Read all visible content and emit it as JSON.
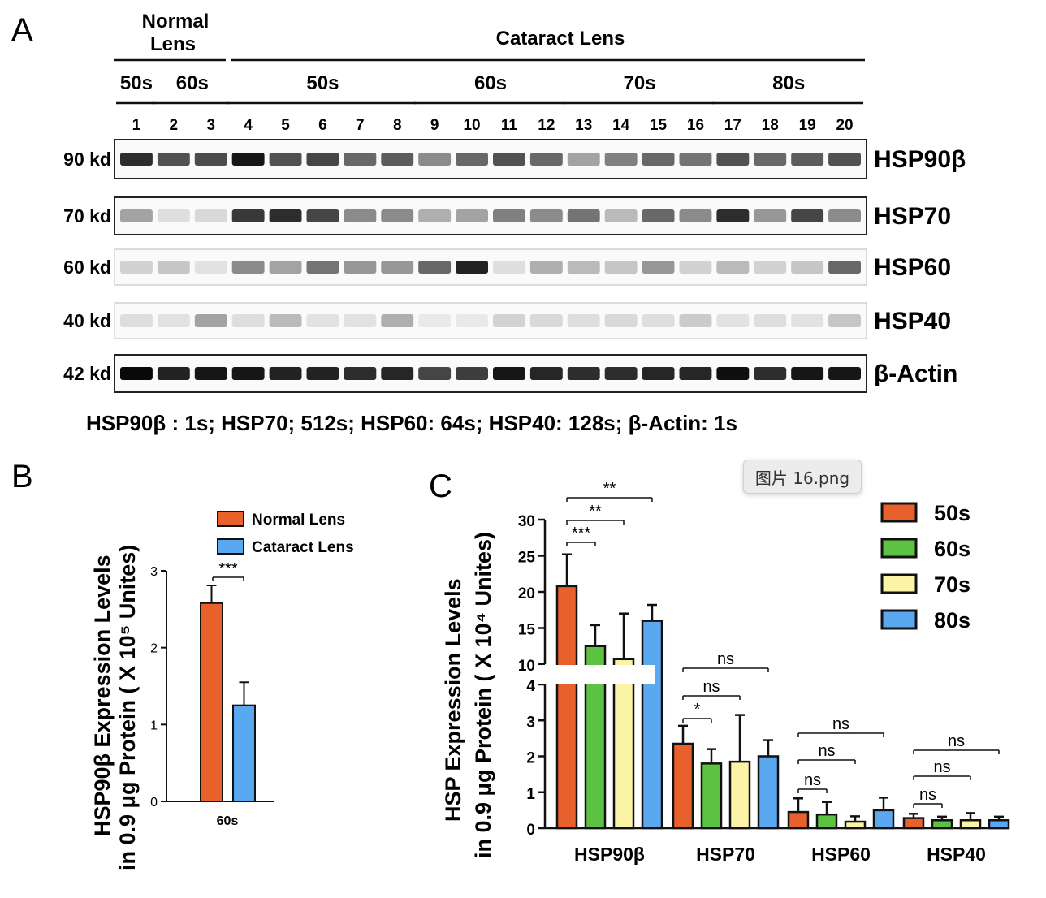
{
  "panels": {
    "a": "A",
    "b": "B",
    "c": "C"
  },
  "blot": {
    "group_normal": "Normal\nLens",
    "group_cataract": "Cataract Lens",
    "age_headers": [
      {
        "label": "50s",
        "lanes": [
          1
        ]
      },
      {
        "label": "60s",
        "lanes": [
          2,
          3
        ]
      },
      {
        "label": "50s",
        "lanes": [
          4,
          5,
          6,
          7,
          8
        ]
      },
      {
        "label": "60s",
        "lanes": [
          9,
          10,
          11,
          12
        ]
      },
      {
        "label": "70s",
        "lanes": [
          13,
          14,
          15,
          16
        ]
      },
      {
        "label": "80s",
        "lanes": [
          17,
          18,
          19,
          20
        ]
      }
    ],
    "lanes": [
      "1",
      "2",
      "3",
      "4",
      "5",
      "6",
      "7",
      "8",
      "9",
      "10",
      "11",
      "12",
      "13",
      "14",
      "15",
      "16",
      "17",
      "18",
      "19",
      "20"
    ],
    "rows": [
      {
        "kd": "90 kd",
        "protein": "HSP90β",
        "intensity": [
          0.85,
          0.7,
          0.72,
          0.95,
          0.7,
          0.75,
          0.6,
          0.65,
          0.45,
          0.6,
          0.7,
          0.6,
          0.35,
          0.5,
          0.6,
          0.55,
          0.7,
          0.6,
          0.65,
          0.7
        ]
      },
      {
        "kd": "70 kd",
        "protein": "HSP70",
        "intensity": [
          0.35,
          0.1,
          0.12,
          0.8,
          0.85,
          0.75,
          0.45,
          0.45,
          0.3,
          0.35,
          0.5,
          0.45,
          0.55,
          0.25,
          0.6,
          0.45,
          0.85,
          0.4,
          0.75,
          0.45
        ]
      },
      {
        "kd": "60 kd",
        "protein": "HSP60",
        "intensity": [
          0.15,
          0.2,
          0.08,
          0.45,
          0.35,
          0.55,
          0.4,
          0.4,
          0.6,
          0.9,
          0.1,
          0.3,
          0.25,
          0.2,
          0.4,
          0.15,
          0.25,
          0.15,
          0.2,
          0.6
        ]
      },
      {
        "kd": "40 kd",
        "protein": "HSP40",
        "intensity": [
          0.1,
          0.08,
          0.35,
          0.1,
          0.25,
          0.08,
          0.08,
          0.3,
          0.05,
          0.05,
          0.15,
          0.12,
          0.1,
          0.12,
          0.1,
          0.18,
          0.08,
          0.1,
          0.08,
          0.2
        ]
      },
      {
        "kd": "42 kd",
        "protein": "β-Actin",
        "intensity": [
          1.0,
          0.9,
          0.95,
          0.95,
          0.9,
          0.9,
          0.85,
          0.88,
          0.75,
          0.78,
          0.95,
          0.88,
          0.85,
          0.85,
          0.88,
          0.88,
          0.98,
          0.85,
          0.95,
          0.95
        ]
      }
    ],
    "exposure": "HSP90β : 1s; HSP70; 512s; HSP60: 64s; HSP40: 128s; β-Actin: 1s"
  },
  "tooltip": "图片 16.png",
  "chart_data": [
    {
      "type": "bar",
      "panel": "B",
      "ylabel_line1": "HSP90β Expression Levels",
      "ylabel_line2": "in 0.9 μg Protein ( X 10⁵ Unites)",
      "categories": [
        "60s"
      ],
      "series": [
        {
          "name": "Normal Lens",
          "color": "#e8602c",
          "values": [
            2.58
          ],
          "error": [
            0.23
          ]
        },
        {
          "name": "Cataract Lens",
          "color": "#5aa8f0",
          "values": [
            1.25
          ],
          "error": [
            0.3
          ]
        }
      ],
      "ylim": [
        0,
        3
      ],
      "yticks": [
        "0",
        "1",
        "2",
        "3"
      ],
      "significance": [
        {
          "label": "***"
        }
      ],
      "legend": "top"
    },
    {
      "type": "bar",
      "panel": "C",
      "ylabel_line1": "HSP Expression Levels",
      "ylabel_line2": "in 0.9 μg Protein ( X 10⁴ Unites)",
      "categories": [
        "HSP90β",
        "HSP70",
        "HSP60",
        "HSP40"
      ],
      "series": [
        {
          "name": "50s",
          "color": "#e8602c",
          "values": [
            20.8,
            2.35,
            0.45,
            0.28
          ],
          "error": [
            4.4,
            0.5,
            0.38,
            0.12
          ]
        },
        {
          "name": "60s",
          "color": "#5cc242",
          "values": [
            12.5,
            1.8,
            0.38,
            0.22
          ],
          "error": [
            2.9,
            0.4,
            0.35,
            0.1
          ]
        },
        {
          "name": "70s",
          "color": "#fbf3a6",
          "values": [
            10.7,
            1.85,
            0.18,
            0.22
          ],
          "error": [
            6.3,
            1.3,
            0.15,
            0.2
          ]
        },
        {
          "name": "80s",
          "color": "#5aa8f0",
          "values": [
            16.0,
            2.0,
            0.5,
            0.22
          ],
          "error": [
            2.2,
            0.45,
            0.35,
            0.1
          ]
        }
      ],
      "ylim": [
        0,
        30
      ],
      "axis_break": [
        4,
        10
      ],
      "yticks_lower": [
        "0",
        "1",
        "2",
        "3",
        "4"
      ],
      "yticks_upper": [
        "10",
        "15",
        "20",
        "25",
        "30"
      ],
      "significance": [
        {
          "category": "HSP90β",
          "labels": [
            "***",
            "**",
            "**"
          ]
        },
        {
          "category": "HSP70",
          "labels": [
            "*",
            "ns",
            "ns"
          ]
        },
        {
          "category": "HSP60",
          "labels": [
            "ns",
            "ns",
            "ns"
          ]
        },
        {
          "category": "HSP40",
          "labels": [
            "ns",
            "ns",
            "ns"
          ]
        }
      ],
      "legend": "top-right"
    }
  ]
}
